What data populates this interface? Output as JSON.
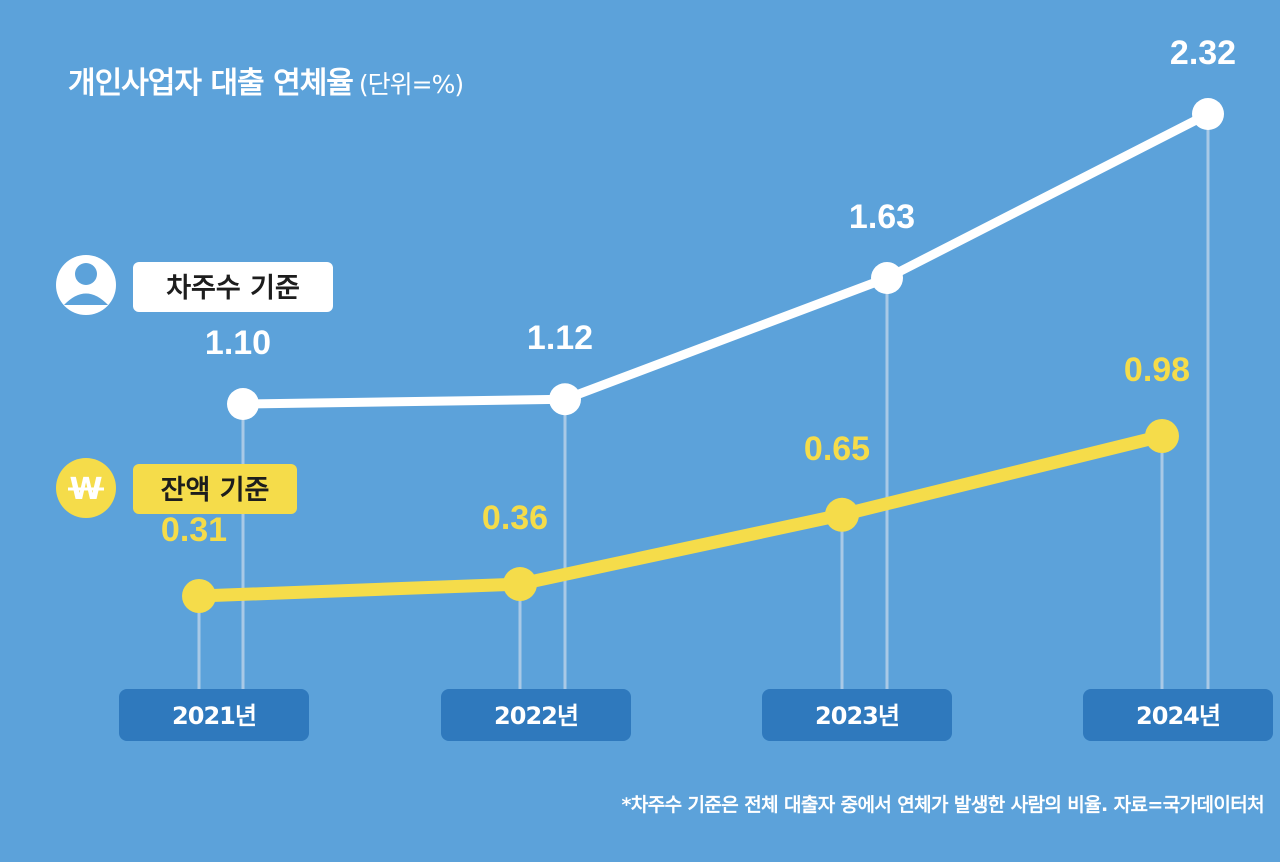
{
  "chart_data": {
    "type": "line",
    "title": "개인사업자 대출 연체율",
    "unit": "(단위=%)",
    "categories": [
      "2021년",
      "2022년",
      "2023년",
      "2024년"
    ],
    "series": [
      {
        "name": "차주수 기준",
        "values": [
          1.1,
          1.12,
          1.63,
          2.32
        ],
        "value_labels": [
          "1.10",
          "1.12",
          "1.63",
          "2.32"
        ],
        "color": "#ffffff",
        "icon": "person-icon"
      },
      {
        "name": "잔액 기준",
        "values": [
          0.31,
          0.36,
          0.65,
          0.98
        ],
        "value_labels": [
          "0.31",
          "0.36",
          "0.65",
          "0.98"
        ],
        "color": "#f5dc4a",
        "icon": "won-icon",
        "icon_text": "W"
      }
    ],
    "footnote": "*차주수 기준은 전체 대출자 중에서 연체가 발생한 사람의 비율. 자료=국가데이터처",
    "grid": false,
    "axis_visible": false
  },
  "colors": {
    "background": "#5ca2da",
    "year_badge": "#2f79bd",
    "drop_line": "#a9c9e6",
    "label_bg_white": "#ffffff",
    "label_bg_yellow": "#f5dc4a",
    "label_text": "#1d1d1d"
  }
}
